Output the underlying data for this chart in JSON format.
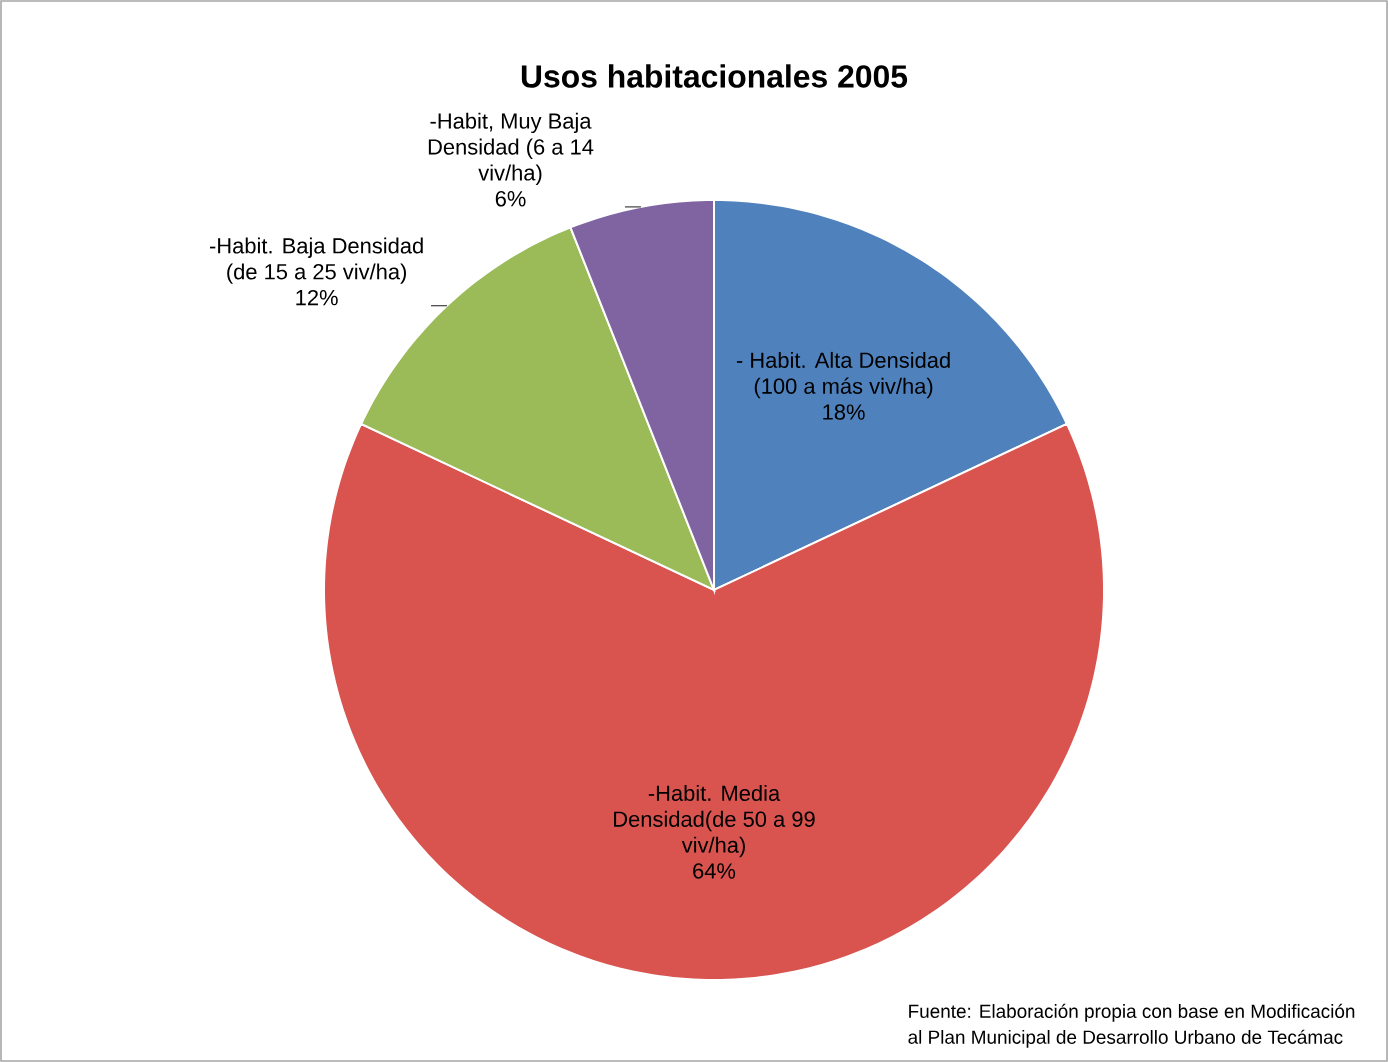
{
  "chart_data": {
    "type": "pie",
    "title": "Usos habitacionales 2005",
    "categories": [
      "- Habit. Alta Densidad (100 a más viv/ha)",
      "-Habit. Media Densidad(de 50 a 99 viv/ha)",
      "-Habit. Baja Densidad (de 15 a 25 viv/ha)",
      "-Habit, Muy Baja Densidad (6 a 14 viv/ha)"
    ],
    "values": [
      18,
      64,
      12,
      6
    ],
    "value_labels": [
      "18%",
      "64%",
      "12%",
      "6%"
    ],
    "colors": [
      "#4f81bd",
      "#d9534f",
      "#9bbb59",
      "#8064a2"
    ],
    "annotations": [
      "Fuente: Elaboración propia con base en Modificación al Plan Municipal de Desarrollo Urbano de Tecámac"
    ]
  }
}
